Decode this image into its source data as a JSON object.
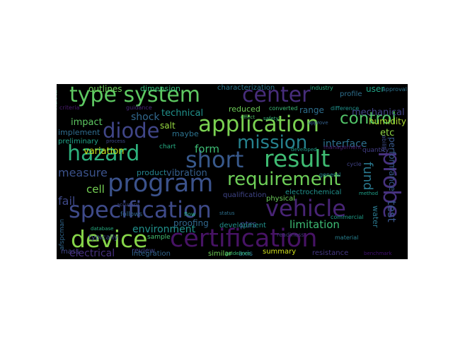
{
  "title": "",
  "words": [
    {
      "key": "type_system",
      "text": "type system",
      "color": "#5ec962"
    },
    {
      "key": "center",
      "text": "center",
      "color": "#472d7b"
    },
    {
      "key": "application",
      "text": "application",
      "color": "#7ad151"
    },
    {
      "key": "hazard",
      "text": "hazard",
      "color": "#2db27d"
    },
    {
      "key": "diode",
      "text": "diode",
      "color": "#404688"
    },
    {
      "key": "mission",
      "text": "mission",
      "color": "#26828e"
    },
    {
      "key": "short",
      "text": "short",
      "color": "#38598c"
    },
    {
      "key": "result",
      "text": "result",
      "color": "#3fbc73"
    },
    {
      "key": "probe",
      "text": "probe",
      "color": "#46317e"
    },
    {
      "key": "program",
      "text": "program",
      "color": "#3b528b"
    },
    {
      "key": "requirement",
      "text": "requirement",
      "color": "#6ece58"
    },
    {
      "key": "control",
      "text": "control",
      "color": "#52c569"
    },
    {
      "key": "specification",
      "text": "specification",
      "color": "#3e4a89"
    },
    {
      "key": "vehicle",
      "text": "vehicle",
      "color": "#482475"
    },
    {
      "key": "device",
      "text": "device",
      "color": "#86d549"
    },
    {
      "key": "certification",
      "text": "certification",
      "color": "#471365"
    },
    {
      "key": "outlines",
      "text": "outlines",
      "color": "#6ece58"
    },
    {
      "key": "dimension",
      "text": "dimension",
      "color": "#35b779"
    },
    {
      "key": "characterization",
      "text": "characterization",
      "color": "#2a788e"
    },
    {
      "key": "user",
      "text": "user",
      "color": "#20a386"
    },
    {
      "key": "shock",
      "text": "shock",
      "color": "#31688e"
    },
    {
      "key": "technical",
      "text": "technical",
      "color": "#21918c"
    },
    {
      "key": "range",
      "text": "range",
      "color": "#2e6e8e"
    },
    {
      "key": "mechanical",
      "text": "mechanical",
      "color": "#414487"
    },
    {
      "key": "impact",
      "text": "impact",
      "color": "#5ec962"
    },
    {
      "key": "salt",
      "text": "salt",
      "color": "#95d840"
    },
    {
      "key": "humidity",
      "text": "humidity",
      "color": "#addc30"
    },
    {
      "key": "maybe",
      "text": "maybe",
      "color": "#2c728e"
    },
    {
      "key": "implement",
      "text": "implement",
      "color": "#2f6c8e"
    },
    {
      "key": "etc",
      "text": "etc",
      "color": "#8fd744"
    },
    {
      "key": "preliminary",
      "text": "preliminary",
      "color": "#1fa187"
    },
    {
      "key": "form",
      "text": "form",
      "color": "#3dbc74"
    },
    {
      "key": "interface",
      "text": "interface",
      "color": "#2d708e"
    },
    {
      "key": "variation",
      "text": "variation",
      "color": "#c8e020"
    },
    {
      "key": "measure",
      "text": "measure",
      "color": "#3b528b"
    },
    {
      "key": "product",
      "text": "product",
      "color": "#25838e"
    },
    {
      "key": "vibration",
      "text": "vibration",
      "color": "#355f8d"
    },
    {
      "key": "fund",
      "text": "fund",
      "color": "#2a788e"
    },
    {
      "key": "cell",
      "text": "cell",
      "color": "#75d054"
    },
    {
      "key": "fail",
      "text": "fail",
      "color": "#3e4989"
    },
    {
      "key": "environment",
      "text": "environment",
      "color": "#21918c"
    },
    {
      "key": "proofing",
      "text": "proofing",
      "color": "#31688e"
    },
    {
      "key": "ptrs",
      "text": "ptrs",
      "color": "#3e4a89"
    },
    {
      "key": "electrochemical",
      "text": "electrochemical",
      "color": "#21918c"
    },
    {
      "key": "limitation",
      "text": "limitation",
      "color": "#3dbc74"
    },
    {
      "key": "water",
      "text": "water",
      "color": "#2a788e"
    },
    {
      "key": "test",
      "text": "test",
      "color": "#39568c"
    },
    {
      "key": "performance",
      "text": "performance",
      "color": "#38598c"
    },
    {
      "key": "review",
      "text": "review",
      "color": "#3f4788"
    },
    {
      "key": "typically",
      "text": "typically",
      "color": "#3e4c8a"
    },
    {
      "key": "mass",
      "text": "mass",
      "color": "#404688"
    },
    {
      "key": "development",
      "text": "development",
      "color": "#21918c"
    },
    {
      "key": "electrical",
      "text": "electrical",
      "color": "#46307e"
    },
    {
      "key": "integration",
      "text": "integration",
      "color": "#32658e"
    },
    {
      "key": "similar",
      "text": "similar",
      "color": "#70cf57"
    },
    {
      "key": "axis",
      "text": "axis",
      "color": "#2a768e"
    },
    {
      "key": "summary",
      "text": "summary",
      "color": "#d0e11c"
    },
    {
      "key": "resistance",
      "text": "resistance",
      "color": "#453781"
    },
    {
      "key": "physical",
      "text": "physical",
      "color": "#6ccd5a"
    },
    {
      "key": "qualification",
      "text": "qualification",
      "color": "#404588"
    },
    {
      "key": "reduced",
      "text": "reduced",
      "color": "#6ece58"
    },
    {
      "key": "approval",
      "text": "approval",
      "color": "#2c728e"
    },
    {
      "key": "profile",
      "text": "profile",
      "color": "#2e6f8e"
    },
    {
      "key": "industry",
      "text": "industry",
      "color": "#28ae80"
    },
    {
      "key": "quantity",
      "text": "quantity",
      "color": "#433e85"
    },
    {
      "key": "sample",
      "text": "sample",
      "color": "#44bf70"
    },
    {
      "key": "chart",
      "text": "chart",
      "color": "#25ac82"
    },
    {
      "key": "guidance",
      "text": "guidance",
      "color": "#482677"
    },
    {
      "key": "ability",
      "text": "ability",
      "color": "#3d4d8a"
    },
    {
      "key": "follows",
      "text": "follows",
      "color": "#32648e"
    },
    {
      "key": "afspcman",
      "text": "afspcman",
      "color": "#31678e"
    },
    {
      "key": "converted",
      "text": "converted",
      "color": "#3bbb75"
    },
    {
      "key": "difference",
      "text": "difference",
      "color": "#20928c"
    },
    {
      "key": "management",
      "text": "management",
      "color": "#481c6e"
    },
    {
      "key": "general",
      "text": "general",
      "color": "#24868e"
    },
    {
      "key": "readiness",
      "text": "readiness",
      "color": "#46337f"
    },
    {
      "key": "commercial",
      "text": "commercial",
      "color": "#1f9e89"
    },
    {
      "key": "guidelines",
      "text": "guidelines",
      "color": "#3aba76"
    },
    {
      "key": "flow",
      "text": "flow",
      "color": "#27ad81"
    },
    {
      "key": "developed",
      "text": "developed",
      "color": "#1e9b8a"
    },
    {
      "key": "cycle",
      "text": "cycle",
      "color": "#414487"
    },
    {
      "key": "many",
      "text": "many",
      "color": "#23a983"
    },
    {
      "key": "approve",
      "text": "approve",
      "color": "#34618d"
    },
    {
      "key": "effect",
      "text": "effect",
      "color": "#52c569"
    },
    {
      "key": "process",
      "text": "process",
      "color": "#3e4989"
    },
    {
      "key": "benchmark",
      "text": "benchmark",
      "color": "#440f76"
    },
    {
      "key": "database",
      "text": "database",
      "color": "#26ad81"
    },
    {
      "key": "status",
      "text": "status",
      "color": "#2d708e"
    },
    {
      "key": "material",
      "text": "material",
      "color": "#277f8e"
    },
    {
      "key": "accuracy",
      "text": "accuracy",
      "color": "#3f4889"
    },
    {
      "key": "method",
      "text": "method",
      "color": "#1fa088"
    },
    {
      "key": "safety",
      "text": "safety",
      "color": "#35b779"
    },
    {
      "key": "criteria",
      "text": "criteria",
      "color": "#481a6c"
    }
  ]
}
